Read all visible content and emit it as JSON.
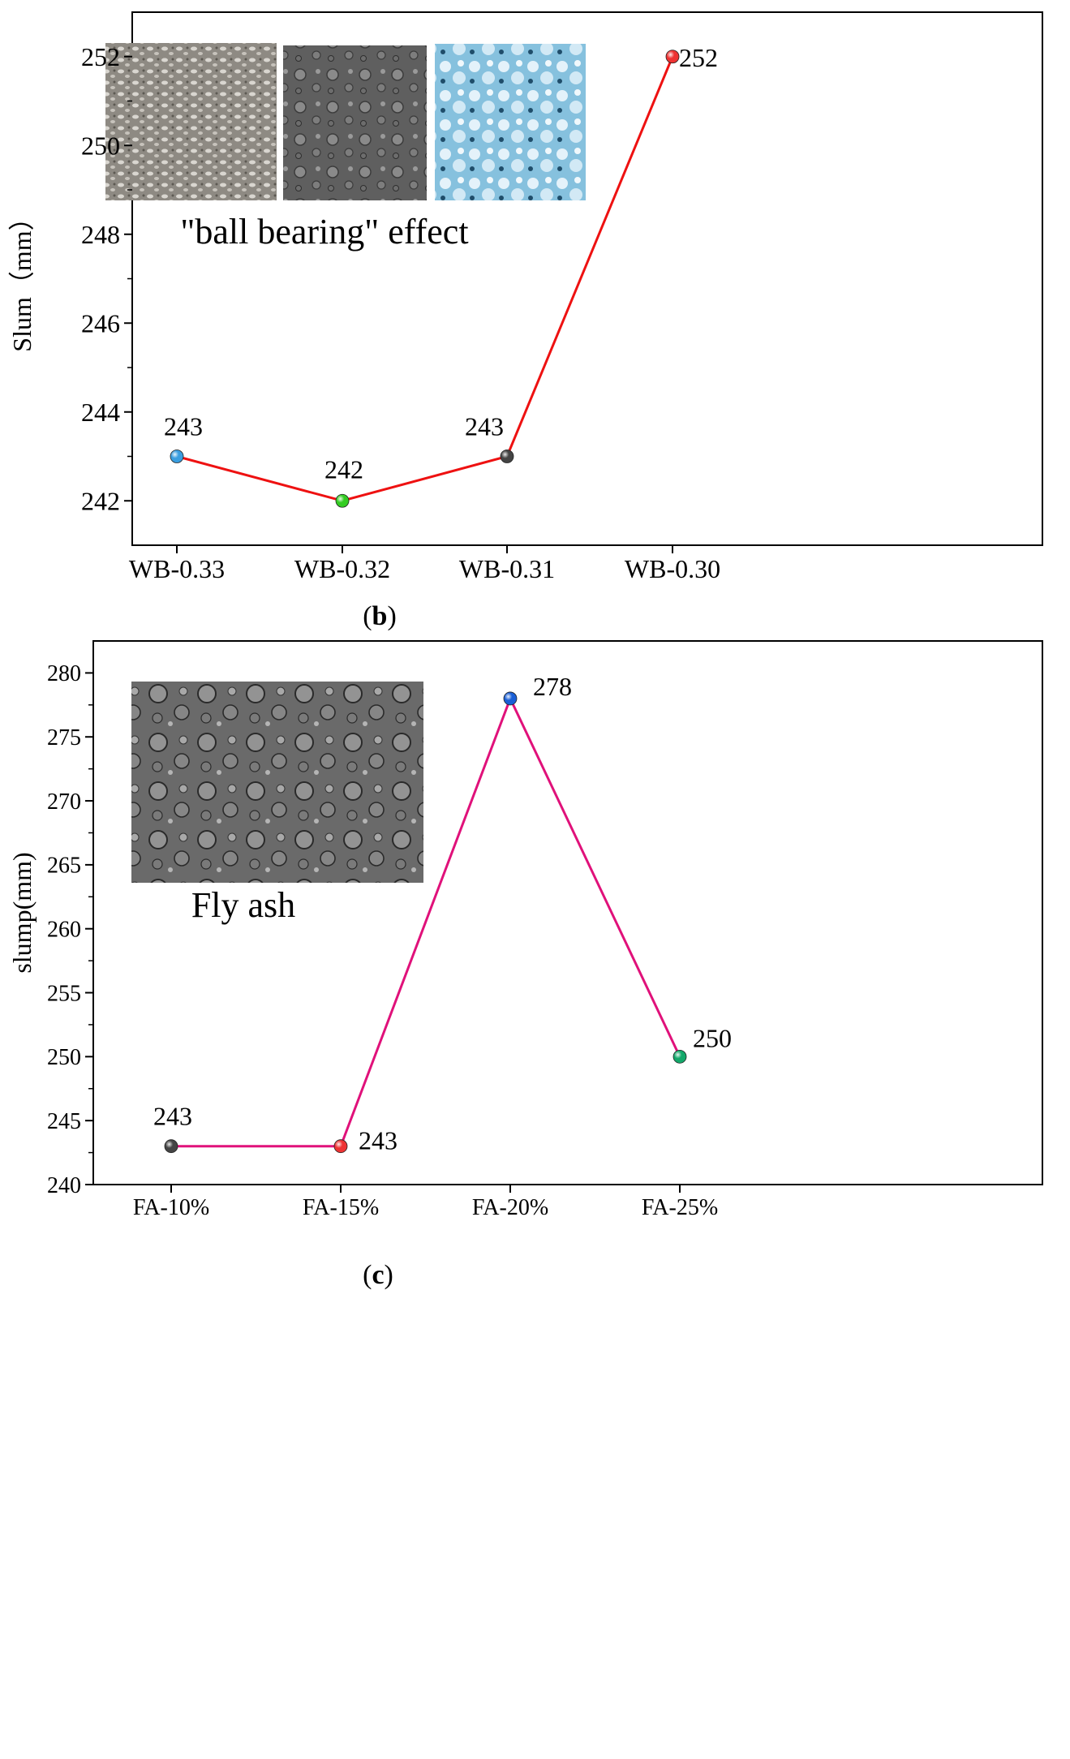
{
  "chart_data": [
    {
      "type": "line",
      "panel_label": "b",
      "ylabel": "Slum（mm）",
      "xlabel": "",
      "categories": [
        "WB-0.33",
        "WB-0.32",
        "WB-0.31",
        "WB-0.30"
      ],
      "series": [
        {
          "values": [
            243,
            242,
            243,
            252
          ],
          "color": "#ee1111",
          "marker_colors": [
            "#3a9ee0",
            "#33cc22",
            "#444444",
            "#ee3333"
          ],
          "data_labels": [
            "243",
            "242",
            "243",
            "252"
          ]
        }
      ],
      "ylim": [
        241,
        253
      ],
      "yticks": [
        242,
        244,
        246,
        248,
        250,
        252
      ],
      "grid": false,
      "inset_caption": "\"ball bearing\" effect"
    },
    {
      "type": "line",
      "panel_label": "c",
      "ylabel": "slump(mm)",
      "xlabel": "",
      "categories": [
        "FA-10%",
        "FA-15%",
        "FA-20%",
        "FA-25%"
      ],
      "series": [
        {
          "values": [
            243,
            243,
            278,
            250
          ],
          "color": "#e0117a",
          "marker_colors": [
            "#444444",
            "#ee3333",
            "#1a5fd6",
            "#13a86a"
          ],
          "data_labels": [
            "243",
            "243",
            "278",
            "250"
          ]
        }
      ],
      "ylim": [
        240,
        282.5
      ],
      "yticks": [
        240,
        245,
        250,
        255,
        260,
        265,
        270,
        275,
        280
      ],
      "grid": false,
      "inset_caption": "Fly ash"
    }
  ]
}
